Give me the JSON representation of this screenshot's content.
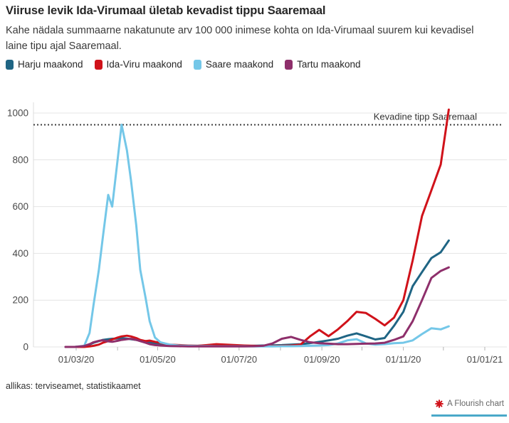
{
  "header": {
    "title": "Viiruse levik Ida-Virumaal ületab kevadist tippu Saaremaal",
    "subtitle": "Kahe nädala summaarne nakatunute arv 100 000 inimese kohta on Ida-Virumaal suurem kui kevadisel laine tipu ajal Saaremaal."
  },
  "legend": [
    {
      "label": "Harju maakond",
      "color": "#1f6584"
    },
    {
      "label": "Ida-Viru maakond",
      "color": "#d0121a"
    },
    {
      "label": "Saare maakond",
      "color": "#74c7e8"
    },
    {
      "label": "Tartu maakond",
      "color": "#8e2f6b"
    }
  ],
  "chart_data": {
    "type": "line",
    "title": "Viiruse levik Ida-Virumaal ületab kevadist tippu Saaremaal",
    "ylabel": "",
    "xlabel": "",
    "grid": "horizontal",
    "ylim": [
      0,
      1040
    ],
    "y_ticks": [
      0,
      200,
      400,
      600,
      800,
      1000
    ],
    "x_tick_labels": [
      {
        "date": "2020-03-01",
        "label": "01/03/20"
      },
      {
        "date": "2020-05-01",
        "label": "01/05/20"
      },
      {
        "date": "2020-07-01",
        "label": "01/07/20"
      },
      {
        "date": "2020-09-01",
        "label": "01/09/20"
      },
      {
        "date": "2020-11-01",
        "label": "01/11/20"
      },
      {
        "date": "2021-01-01",
        "label": "01/01/21"
      }
    ],
    "minor_tick_dates": [
      "2020-03-01",
      "2020-04-01",
      "2020-05-01",
      "2020-06-01",
      "2020-07-01",
      "2020-08-01",
      "2020-09-01",
      "2020-10-01",
      "2020-11-01",
      "2020-12-01",
      "2021-01-01"
    ],
    "annotation": {
      "label": "Kevadine tipp Saaremaal",
      "value": 950,
      "style": "dotted",
      "color": "#3c3c3c"
    },
    "x": [
      "2020-02-22",
      "2020-02-29",
      "2020-03-07",
      "2020-03-11",
      "2020-03-14",
      "2020-03-18",
      "2020-03-21",
      "2020-03-25",
      "2020-03-28",
      "2020-04-01",
      "2020-04-04",
      "2020-04-08",
      "2020-04-11",
      "2020-04-15",
      "2020-04-18",
      "2020-04-22",
      "2020-04-25",
      "2020-04-29",
      "2020-05-03",
      "2020-05-10",
      "2020-05-17",
      "2020-05-24",
      "2020-05-31",
      "2020-06-07",
      "2020-06-14",
      "2020-06-21",
      "2020-06-28",
      "2020-07-05",
      "2020-07-12",
      "2020-07-19",
      "2020-07-26",
      "2020-08-02",
      "2020-08-09",
      "2020-08-16",
      "2020-08-23",
      "2020-08-30",
      "2020-09-06",
      "2020-09-13",
      "2020-09-20",
      "2020-09-27",
      "2020-10-04",
      "2020-10-11",
      "2020-10-18",
      "2020-10-25",
      "2020-11-01",
      "2020-11-08",
      "2020-11-15",
      "2020-11-22",
      "2020-11-29",
      "2020-12-05"
    ],
    "series": [
      {
        "name": "Harju maakond",
        "color": "#1f6584",
        "values": [
          0,
          0,
          3,
          10,
          18,
          25,
          30,
          33,
          35,
          36,
          38,
          36,
          33,
          30,
          28,
          25,
          20,
          15,
          12,
          8,
          6,
          5,
          5,
          6,
          6,
          5,
          4,
          4,
          5,
          6,
          7,
          8,
          10,
          12,
          16,
          22,
          28,
          35,
          48,
          58,
          45,
          32,
          38,
          90,
          150,
          260,
          320,
          380,
          405,
          455
        ]
      },
      {
        "name": "Ida-Viru maakond",
        "color": "#d0121a",
        "values": [
          0,
          0,
          0,
          2,
          5,
          10,
          18,
          25,
          32,
          40,
          45,
          48,
          45,
          38,
          30,
          25,
          27,
          22,
          18,
          10,
          8,
          6,
          5,
          8,
          12,
          10,
          8,
          6,
          5,
          4,
          4,
          5,
          6,
          10,
          45,
          73,
          46,
          75,
          110,
          150,
          145,
          120,
          92,
          125,
          200,
          370,
          560,
          670,
          780,
          1015
        ]
      },
      {
        "name": "Saare maakond",
        "color": "#74c7e8",
        "values": [
          0,
          0,
          5,
          60,
          180,
          330,
          470,
          650,
          600,
          800,
          950,
          840,
          715,
          520,
          330,
          210,
          110,
          40,
          20,
          10,
          6,
          5,
          4,
          4,
          3,
          3,
          3,
          3,
          2,
          2,
          2,
          3,
          3,
          4,
          5,
          6,
          8,
          15,
          28,
          33,
          15,
          10,
          12,
          16,
          18,
          28,
          55,
          80,
          75,
          88
        ]
      },
      {
        "name": "Tartu maakond",
        "color": "#8e2f6b",
        "values": [
          0,
          0,
          4,
          12,
          20,
          26,
          28,
          24,
          22,
          26,
          30,
          33,
          35,
          30,
          25,
          18,
          12,
          8,
          6,
          4,
          3,
          2,
          2,
          2,
          2,
          2,
          2,
          2,
          3,
          5,
          15,
          35,
          43,
          30,
          20,
          16,
          14,
          12,
          12,
          13,
          14,
          15,
          18,
          30,
          45,
          110,
          200,
          295,
          325,
          340
        ]
      }
    ]
  },
  "footer": {
    "source": "allikas: terviseamet, statistikaamet"
  },
  "credit": {
    "label": "A Flourish chart",
    "icon": "flourish-flower-icon",
    "icon_color": "#d0121a",
    "underline_color": "#4aa9c9"
  }
}
